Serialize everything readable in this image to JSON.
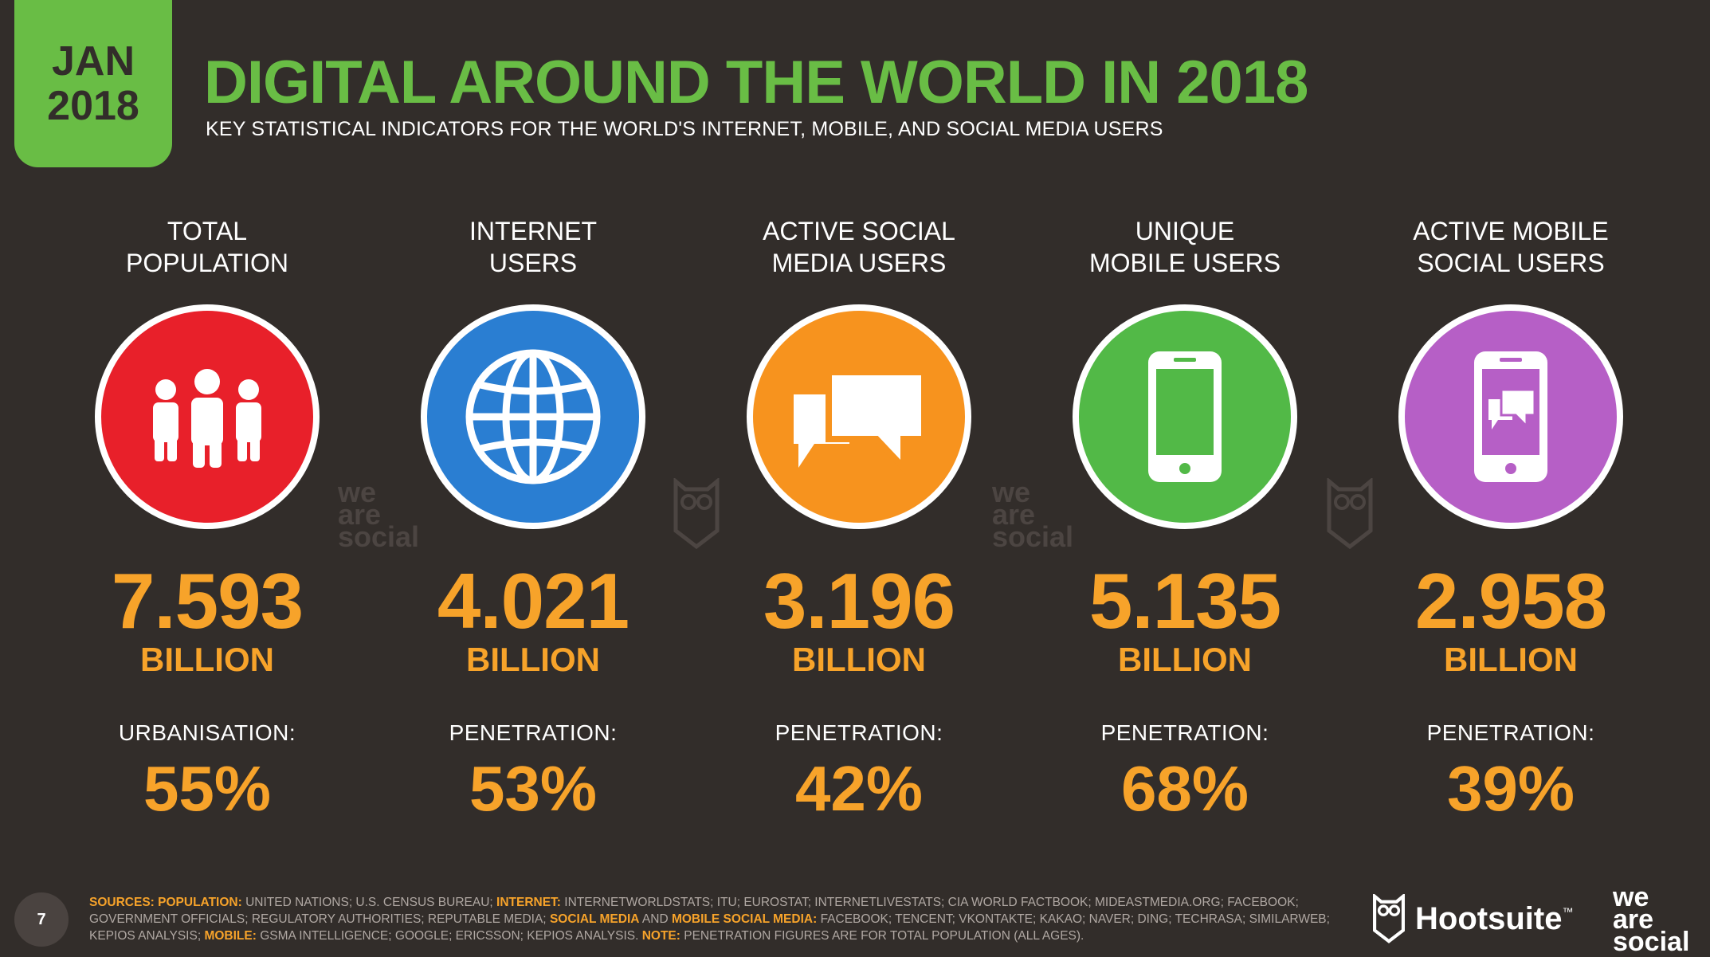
{
  "header": {
    "badge_month": "JAN",
    "badge_year": "2018",
    "title": "DIGITAL AROUND THE WORLD IN 2018",
    "subtitle": "KEY STATISTICAL INDICATORS FOR THE WORLD'S INTERNET, MOBILE, AND SOCIAL MEDIA USERS"
  },
  "stats": [
    {
      "label1": "TOTAL",
      "label2": "POPULATION",
      "value": "7.593",
      "unit": "BILLION",
      "sub_label": "URBANISATION:",
      "sub_value": "55%",
      "color": "#e8202a",
      "icon": "people-icon"
    },
    {
      "label1": "INTERNET",
      "label2": "USERS",
      "value": "4.021",
      "unit": "BILLION",
      "sub_label": "PENETRATION:",
      "sub_value": "53%",
      "color": "#2a7ed2",
      "icon": "globe-icon"
    },
    {
      "label1": "ACTIVE SOCIAL",
      "label2": "MEDIA USERS",
      "value": "3.196",
      "unit": "BILLION",
      "sub_label": "PENETRATION:",
      "sub_value": "42%",
      "color": "#f7931e",
      "icon": "chat-bubbles-icon"
    },
    {
      "label1": "UNIQUE",
      "label2": "MOBILE USERS",
      "value": "5.135",
      "unit": "BILLION",
      "sub_label": "PENETRATION:",
      "sub_value": "68%",
      "color": "#52b947",
      "icon": "mobile-phone-icon"
    },
    {
      "label1": "ACTIVE MOBILE",
      "label2": "SOCIAL USERS",
      "value": "2.958",
      "unit": "BILLION",
      "sub_label": "PENETRATION:",
      "sub_value": "39%",
      "color": "#b65fc6",
      "icon": "mobile-social-icon"
    }
  ],
  "watermark": {
    "line1": "we",
    "line2": "are",
    "line3": "social"
  },
  "footer": {
    "page_number": "7",
    "sources_label": "SOURCES:",
    "pop_label": "POPULATION:",
    "pop_text": "UNITED NATIONS; U.S. CENSUS BUREAU;",
    "internet_label": "INTERNET:",
    "internet_text": "INTERNETWORLDSTATS; ITU; EUROSTAT; INTERNETLIVESTATS; CIA WORLD FACTBOOK; MIDEASTMEDIA.ORG; FACEBOOK; GOVERNMENT OFFICIALS; REGULATORY AUTHORITIES; REPUTABLE MEDIA;",
    "social_label": "SOCIAL MEDIA",
    "and_text": "AND",
    "mobile_social_label": "MOBILE SOCIAL MEDIA:",
    "social_text": "FACEBOOK; TENCENT; VKONTAKTE; KAKAO; NAVER; DING; TECHRASA; SIMILARWEB; KEPIOS ANALYSIS;",
    "mobile_label": "MOBILE:",
    "mobile_text": "GSMA INTELLIGENCE; GOOGLE; ERICSSON; KEPIOS ANALYSIS.",
    "note_label": "NOTE:",
    "note_text": "PENETRATION FIGURES ARE FOR TOTAL POPULATION (ALL AGES).",
    "hootsuite": "Hootsuite",
    "tm": "™",
    "was1": "we",
    "was2": "are",
    "was3": "social"
  }
}
